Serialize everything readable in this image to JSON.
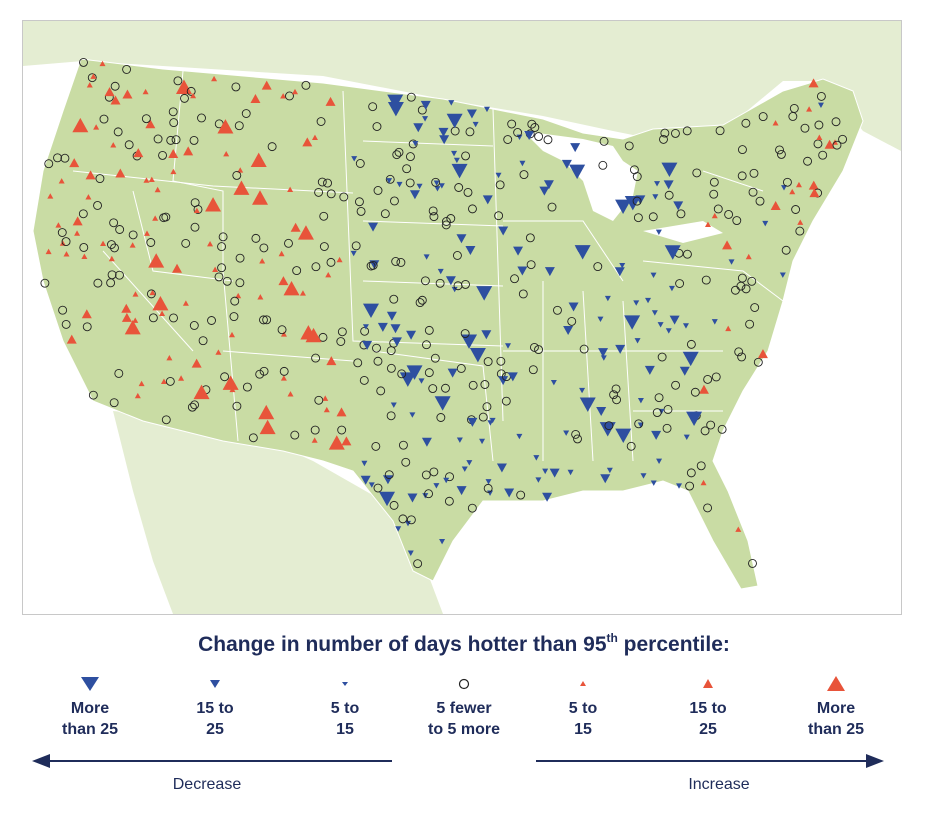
{
  "legend": {
    "title_main": "Change in number of days hotter than 95",
    "title_sup": "th",
    "title_tail": " percentile:",
    "items": [
      {
        "line1": "More",
        "line2": "than 25",
        "symbol": "triangle-down-large-icon"
      },
      {
        "line1": "15 to",
        "line2": "25",
        "symbol": "triangle-down-medium-icon"
      },
      {
        "line1": "5 to",
        "line2": "15",
        "symbol": "triangle-down-small-icon"
      },
      {
        "line1": "5 fewer",
        "line2": "to 5 more",
        "symbol": "circle-icon"
      },
      {
        "line1": "5 to",
        "line2": "15",
        "symbol": "triangle-up-small-icon"
      },
      {
        "line1": "15 to",
        "line2": "25",
        "symbol": "triangle-up-medium-icon"
      },
      {
        "line1": "More",
        "line2": "than 25",
        "symbol": "triangle-up-large-icon"
      }
    ],
    "decrease_label": "Decrease",
    "increase_label": "Increase"
  },
  "colors": {
    "land": "#c9dca4",
    "neighbor_land": "#e4edd2",
    "water": "#ffffff",
    "decrease": "#2e4fa0",
    "increase": "#e8543a",
    "neutral": "#222222",
    "text": "#1f2c5a"
  }
}
